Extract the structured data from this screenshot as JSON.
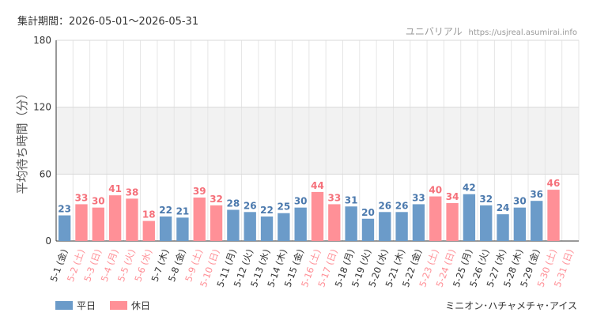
{
  "header": {
    "period_label": "集計期間：2026-05-01～2026-05-31",
    "park_name": "ユニバリアル",
    "site_url": "https://usjreal.asumirai.info"
  },
  "footer": {
    "attraction": "ミニオン･ハチャメチャ･アイス"
  },
  "colors": {
    "weekday": "#6b9bc9",
    "holiday": "#ff9097",
    "weekday_text": "#4b79ad",
    "holiday_text": "#f5707a",
    "band": "#f2f2f2",
    "grid": "#e6e6e6"
  },
  "chart_data": {
    "type": "bar",
    "ylabel": "平均待ち時間（分）",
    "ylim": [
      0,
      180
    ],
    "yticks": [
      0,
      60,
      120,
      180
    ],
    "band": [
      60,
      120
    ],
    "grid": true,
    "legend": {
      "position": "bottom-left",
      "items": [
        {
          "key": "weekday",
          "label": "平日"
        },
        {
          "key": "holiday",
          "label": "休日"
        }
      ]
    },
    "categories": [
      "5-1 (金)",
      "5-2 (土)",
      "5-3 (日)",
      "5-4 (月)",
      "5-5 (火)",
      "5-6 (水)",
      "5-7 (木)",
      "5-8 (金)",
      "5-9 (土)",
      "5-10 (日)",
      "5-11 (月)",
      "5-12 (火)",
      "5-13 (水)",
      "5-14 (木)",
      "5-15 (金)",
      "5-16 (土)",
      "5-17 (日)",
      "5-18 (月)",
      "5-19 (火)",
      "5-20 (水)",
      "5-21 (木)",
      "5-22 (金)",
      "5-23 (土)",
      "5-24 (日)",
      "5-25 (月)",
      "5-26 (火)",
      "5-27 (水)",
      "5-28 (木)",
      "5-29 (金)",
      "5-30 (土)",
      "5-31 (日)"
    ],
    "values": [
      23,
      33,
      30,
      41,
      38,
      18,
      22,
      21,
      39,
      32,
      28,
      26,
      22,
      25,
      30,
      44,
      33,
      31,
      20,
      26,
      26,
      33,
      40,
      34,
      42,
      32,
      24,
      30,
      36,
      46,
      null
    ],
    "day_type": [
      "weekday",
      "holiday",
      "holiday",
      "holiday",
      "holiday",
      "holiday",
      "weekday",
      "weekday",
      "holiday",
      "holiday",
      "weekday",
      "weekday",
      "weekday",
      "weekday",
      "weekday",
      "holiday",
      "holiday",
      "weekday",
      "weekday",
      "weekday",
      "weekday",
      "weekday",
      "holiday",
      "holiday",
      "weekday",
      "weekday",
      "weekday",
      "weekday",
      "weekday",
      "holiday",
      "holiday"
    ]
  }
}
